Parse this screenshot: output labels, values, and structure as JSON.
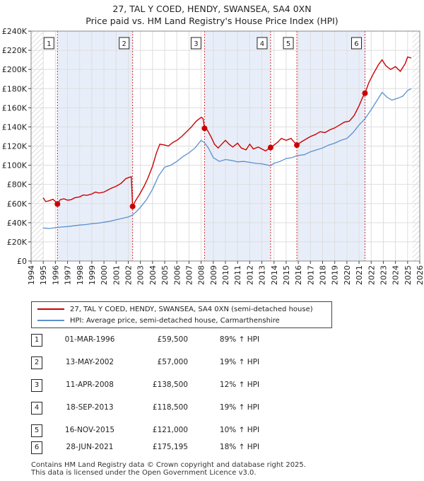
{
  "title_line1": "27, TAL Y COED, HENDY, SWANSEA, SA4 0XN",
  "title_line2": "Price paid vs. HM Land Registry's House Price Index (HPI)",
  "chart_data": {
    "type": "line",
    "x_ticks": [
      1994,
      1995,
      1996,
      1997,
      1998,
      1999,
      2000,
      2001,
      2002,
      2003,
      2004,
      2005,
      2006,
      2007,
      2008,
      2009,
      2010,
      2011,
      2012,
      2013,
      2014,
      2015,
      2016,
      2017,
      2018,
      2019,
      2020,
      2021,
      2022,
      2023,
      2024,
      2025,
      2026
    ],
    "y_ticks": [
      0,
      20000,
      40000,
      60000,
      80000,
      100000,
      120000,
      140000,
      160000,
      180000,
      200000,
      220000,
      240000
    ],
    "y_tick_labels": [
      "£0",
      "£20K",
      "£40K",
      "£60K",
      "£80K",
      "£100K",
      "£120K",
      "£140K",
      "£160K",
      "£180K",
      "£200K",
      "£220K",
      "£240K"
    ],
    "xlim": [
      1994,
      2026
    ],
    "ylim": [
      0,
      240000
    ],
    "grid": true,
    "hatched_ranges": [
      [
        1994,
        1995
      ],
      [
        2025.4,
        2026
      ]
    ],
    "colors": {
      "property": "#cc0000",
      "hpi": "#5b8fd1",
      "shade": "#e8eef9",
      "vline": "#d03030",
      "grid": "#dddddd"
    },
    "series": [
      {
        "name": "27, TAL Y COED, HENDY, SWANSEA, SA4 0XN (semi-detached house)",
        "points": [
          [
            1995.0,
            66000
          ],
          [
            1995.2,
            62000
          ],
          [
            1995.5,
            63000
          ],
          [
            1995.8,
            64500
          ],
          [
            1996.0,
            62000
          ],
          [
            1996.17,
            59500
          ],
          [
            1996.4,
            64000
          ],
          [
            1996.7,
            65000
          ],
          [
            1997.0,
            63500
          ],
          [
            1997.3,
            64000
          ],
          [
            1997.6,
            66000
          ],
          [
            1998.0,
            67000
          ],
          [
            1998.3,
            69000
          ],
          [
            1998.6,
            68500
          ],
          [
            1999.0,
            70000
          ],
          [
            1999.3,
            72000
          ],
          [
            1999.6,
            71000
          ],
          [
            2000.0,
            72000
          ],
          [
            2000.3,
            74000
          ],
          [
            2000.6,
            76000
          ],
          [
            2001.0,
            78000
          ],
          [
            2001.4,
            81000
          ],
          [
            2001.8,
            86000
          ],
          [
            2002.0,
            87000
          ],
          [
            2002.25,
            88000
          ],
          [
            2002.36,
            57000
          ],
          [
            2002.6,
            63000
          ],
          [
            2002.9,
            69000
          ],
          [
            2003.3,
            78000
          ],
          [
            2003.6,
            86000
          ],
          [
            2004.0,
            99000
          ],
          [
            2004.3,
            112000
          ],
          [
            2004.6,
            122000
          ],
          [
            2005.0,
            121000
          ],
          [
            2005.3,
            120000
          ],
          [
            2005.7,
            124000
          ],
          [
            2006.0,
            126000
          ],
          [
            2006.4,
            130000
          ],
          [
            2006.8,
            135000
          ],
          [
            2007.2,
            140000
          ],
          [
            2007.6,
            146000
          ],
          [
            2008.0,
            150000
          ],
          [
            2008.15,
            149000
          ],
          [
            2008.28,
            138500
          ],
          [
            2008.5,
            137000
          ],
          [
            2008.8,
            130000
          ],
          [
            2009.1,
            122000
          ],
          [
            2009.4,
            118000
          ],
          [
            2009.7,
            122000
          ],
          [
            2010.0,
            126000
          ],
          [
            2010.3,
            122000
          ],
          [
            2010.6,
            119000
          ],
          [
            2011.0,
            123000
          ],
          [
            2011.3,
            118000
          ],
          [
            2011.7,
            116000
          ],
          [
            2012.0,
            122000
          ],
          [
            2012.3,
            117000
          ],
          [
            2012.7,
            119000
          ],
          [
            2013.0,
            117000
          ],
          [
            2013.3,
            115000
          ],
          [
            2013.72,
            118500
          ],
          [
            2014.0,
            121000
          ],
          [
            2014.3,
            124000
          ],
          [
            2014.6,
            128000
          ],
          [
            2015.0,
            126000
          ],
          [
            2015.4,
            128000
          ],
          [
            2015.88,
            121000
          ],
          [
            2016.2,
            124000
          ],
          [
            2016.6,
            127000
          ],
          [
            2017.0,
            130000
          ],
          [
            2017.4,
            132000
          ],
          [
            2017.8,
            135000
          ],
          [
            2018.2,
            134000
          ],
          [
            2018.6,
            137000
          ],
          [
            2019.0,
            139000
          ],
          [
            2019.4,
            142000
          ],
          [
            2019.8,
            145000
          ],
          [
            2020.2,
            146000
          ],
          [
            2020.6,
            152000
          ],
          [
            2021.0,
            162000
          ],
          [
            2021.3,
            171000
          ],
          [
            2021.49,
            175195
          ],
          [
            2021.8,
            186000
          ],
          [
            2022.2,
            196000
          ],
          [
            2022.6,
            205000
          ],
          [
            2022.9,
            210000
          ],
          [
            2023.2,
            204000
          ],
          [
            2023.6,
            200000
          ],
          [
            2024.0,
            203000
          ],
          [
            2024.4,
            198000
          ],
          [
            2024.8,
            206000
          ],
          [
            2025.0,
            213000
          ],
          [
            2025.3,
            212000
          ]
        ]
      },
      {
        "name": "HPI: Average price, semi-detached house, Carmarthenshire",
        "points": [
          [
            1995.0,
            34500
          ],
          [
            1995.5,
            34000
          ],
          [
            1996.0,
            34800
          ],
          [
            1996.5,
            35500
          ],
          [
            1997.0,
            36000
          ],
          [
            1997.5,
            36800
          ],
          [
            1998.0,
            37500
          ],
          [
            1998.5,
            38000
          ],
          [
            1999.0,
            39000
          ],
          [
            1999.5,
            39500
          ],
          [
            2000.0,
            40500
          ],
          [
            2000.5,
            41500
          ],
          [
            2001.0,
            43000
          ],
          [
            2001.5,
            44500
          ],
          [
            2002.0,
            46000
          ],
          [
            2002.36,
            48000
          ],
          [
            2002.7,
            52000
          ],
          [
            2003.0,
            56000
          ],
          [
            2003.5,
            64000
          ],
          [
            2004.0,
            75000
          ],
          [
            2004.5,
            89000
          ],
          [
            2005.0,
            98000
          ],
          [
            2005.5,
            100000
          ],
          [
            2006.0,
            104000
          ],
          [
            2006.5,
            109000
          ],
          [
            2007.0,
            113000
          ],
          [
            2007.5,
            118000
          ],
          [
            2008.0,
            126000
          ],
          [
            2008.28,
            123500
          ],
          [
            2008.6,
            118000
          ],
          [
            2009.0,
            108000
          ],
          [
            2009.5,
            104000
          ],
          [
            2010.0,
            106000
          ],
          [
            2010.5,
            105000
          ],
          [
            2011.0,
            103500
          ],
          [
            2011.5,
            104000
          ],
          [
            2012.0,
            103000
          ],
          [
            2012.5,
            102000
          ],
          [
            2013.0,
            101500
          ],
          [
            2013.72,
            99500
          ],
          [
            2014.0,
            102000
          ],
          [
            2014.5,
            104000
          ],
          [
            2015.0,
            107000
          ],
          [
            2015.5,
            108000
          ],
          [
            2015.88,
            110000
          ],
          [
            2016.5,
            111000
          ],
          [
            2017.0,
            114000
          ],
          [
            2017.5,
            116000
          ],
          [
            2018.0,
            118000
          ],
          [
            2018.5,
            121000
          ],
          [
            2019.0,
            123000
          ],
          [
            2019.5,
            126000
          ],
          [
            2020.0,
            128000
          ],
          [
            2020.5,
            134000
          ],
          [
            2021.0,
            142000
          ],
          [
            2021.49,
            148500
          ],
          [
            2022.0,
            158000
          ],
          [
            2022.5,
            168000
          ],
          [
            2022.9,
            176000
          ],
          [
            2023.3,
            171000
          ],
          [
            2023.7,
            168000
          ],
          [
            2024.2,
            170000
          ],
          [
            2024.6,
            172000
          ],
          [
            2025.0,
            178000
          ],
          [
            2025.3,
            180000
          ]
        ]
      }
    ],
    "sales": [
      {
        "n": "1",
        "x": 1996.17,
        "price": 59500
      },
      {
        "n": "2",
        "x": 2002.36,
        "price": 57000
      },
      {
        "n": "3",
        "x": 2008.28,
        "price": 138500
      },
      {
        "n": "4",
        "x": 2013.72,
        "price": 118500
      },
      {
        "n": "5",
        "x": 2015.88,
        "price": 121000
      },
      {
        "n": "6",
        "x": 2021.49,
        "price": 175195
      }
    ]
  },
  "legend": {
    "property_label": "27, TAL Y COED, HENDY, SWANSEA, SA4 0XN (semi-detached house)",
    "hpi_label": "HPI: Average price, semi-detached house, Carmarthenshire"
  },
  "sales_table": [
    {
      "n": "1",
      "date": "01-MAR-1996",
      "price": "£59,500",
      "hpi": "89% ↑ HPI"
    },
    {
      "n": "2",
      "date": "13-MAY-2002",
      "price": "£57,000",
      "hpi": "19% ↑ HPI"
    },
    {
      "n": "3",
      "date": "11-APR-2008",
      "price": "£138,500",
      "hpi": "12% ↑ HPI"
    },
    {
      "n": "4",
      "date": "18-SEP-2013",
      "price": "£118,500",
      "hpi": "19% ↑ HPI"
    },
    {
      "n": "5",
      "date": "16-NOV-2015",
      "price": "£121,000",
      "hpi": "10% ↑ HPI"
    },
    {
      "n": "6",
      "date": "28-JUN-2021",
      "price": "£175,195",
      "hpi": "18% ↑ HPI"
    }
  ],
  "footer": {
    "line1": "Contains HM Land Registry data © Crown copyright and database right 2025.",
    "line2": "This data is licensed under the Open Government Licence v3.0."
  }
}
